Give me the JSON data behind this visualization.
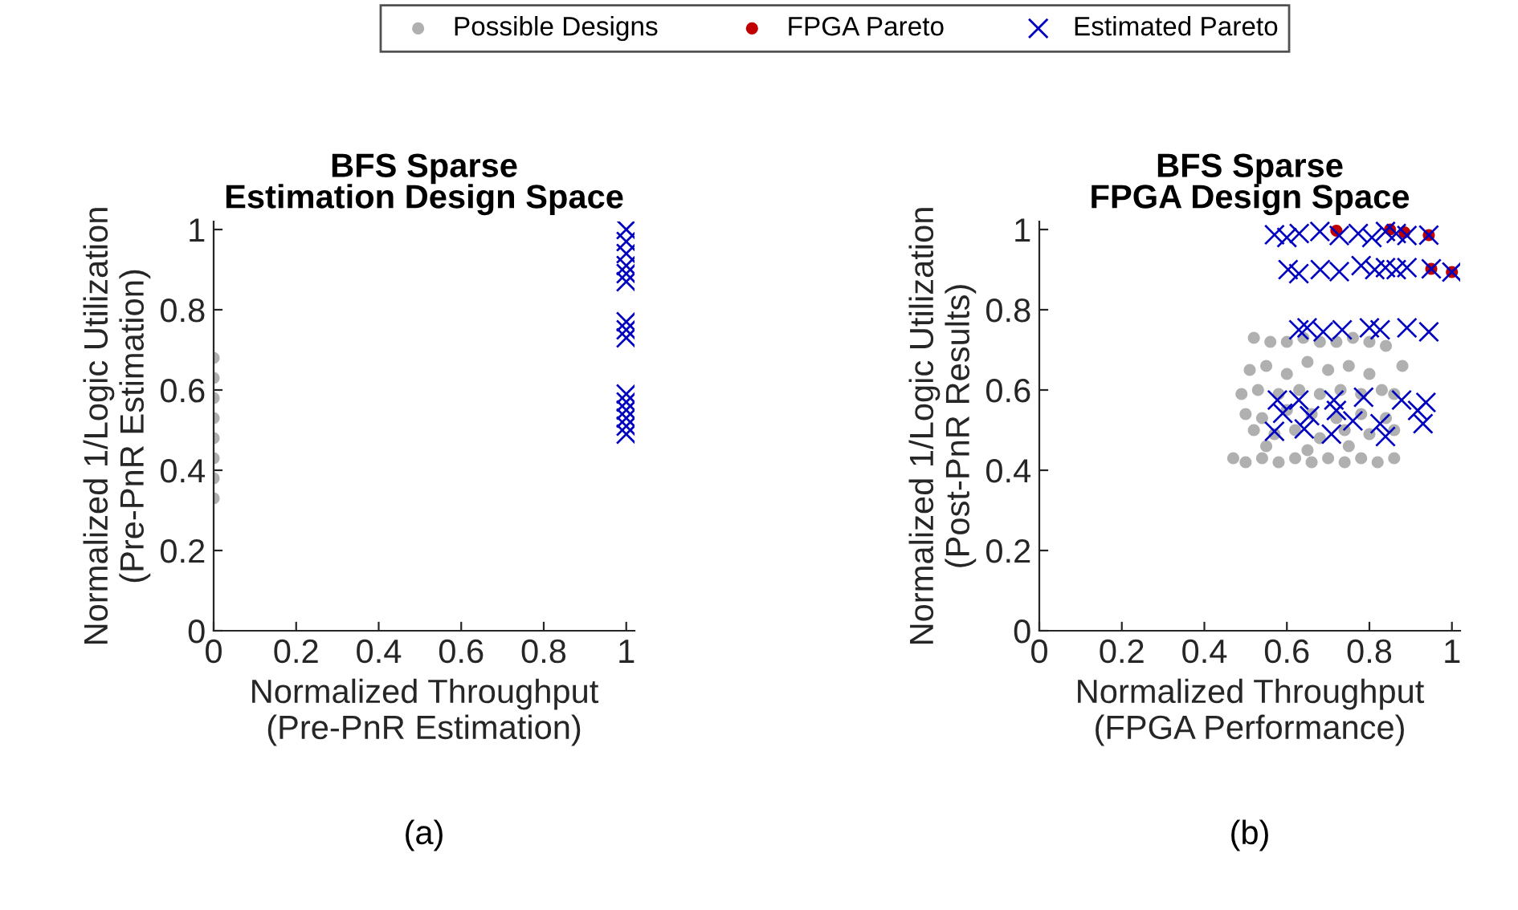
{
  "chart_data": [
    {
      "type": "scatter",
      "title": "BFS Sparse\nEstimation Design Space",
      "xlabel": "Normalized Throughput\n(Pre-PnR Estimation)",
      "ylabel": "Normalized 1/Logic Utilization\n(Pre-PnR Estimation)",
      "xlim": [
        0,
        1.02
      ],
      "ylim": [
        0,
        1.02
      ],
      "xticks": [
        0,
        0.2,
        0.4,
        0.6,
        0.8,
        1
      ],
      "yticks": [
        0,
        0.2,
        0.4,
        0.6,
        0.8,
        1
      ],
      "grid": false,
      "legend": "top",
      "annotations": [
        "(a)"
      ],
      "series": [
        {
          "name": "Possible Designs",
          "color": "#b0b0b0",
          "marker": "circle",
          "x": [
            0,
            0,
            0,
            0,
            0,
            0,
            0,
            0
          ],
          "values": [
            0.33,
            0.38,
            0.43,
            0.48,
            0.53,
            0.58,
            0.63,
            0.68
          ]
        },
        {
          "name": "Estimated Pareto",
          "color": "#0000c0",
          "marker": "cross",
          "x": [
            1,
            1,
            1,
            1,
            1,
            1,
            1,
            1,
            1,
            1,
            1,
            1,
            1,
            1,
            1
          ],
          "values": [
            1.0,
            0.97,
            0.94,
            0.91,
            0.89,
            0.87,
            0.77,
            0.75,
            0.73,
            0.59,
            0.57,
            0.55,
            0.53,
            0.51,
            0.49
          ]
        }
      ]
    },
    {
      "type": "scatter",
      "title": "BFS Sparse\nFPGA Design Space",
      "xlabel": "Normalized Throughput\n(FPGA Performance)",
      "ylabel": "Normalized 1/Logic Utilization\n(Post-PnR Results)",
      "xlim": [
        0,
        1.02
      ],
      "ylim": [
        0,
        1.02
      ],
      "xticks": [
        0,
        0.2,
        0.4,
        0.6,
        0.8,
        1
      ],
      "yticks": [
        0,
        0.2,
        0.4,
        0.6,
        0.8,
        1
      ],
      "grid": false,
      "legend": "top",
      "annotations": [
        "(b)"
      ],
      "series": [
        {
          "name": "Possible Designs",
          "color": "#b0b0b0",
          "marker": "circle",
          "x": [
            0.52,
            0.56,
            0.6,
            0.64,
            0.68,
            0.72,
            0.76,
            0.8,
            0.84,
            0.51,
            0.55,
            0.6,
            0.65,
            0.7,
            0.75,
            0.8,
            0.88,
            0.49,
            0.53,
            0.58,
            0.63,
            0.68,
            0.73,
            0.78,
            0.83,
            0.86,
            0.5,
            0.54,
            0.6,
            0.66,
            0.72,
            0.78,
            0.84,
            0.52,
            0.57,
            0.62,
            0.68,
            0.74,
            0.8,
            0.86,
            0.47,
            0.5,
            0.54,
            0.58,
            0.62,
            0.66,
            0.7,
            0.74,
            0.78,
            0.82,
            0.86,
            0.55,
            0.65,
            0.75
          ],
          "values": [
            0.73,
            0.72,
            0.72,
            0.73,
            0.72,
            0.72,
            0.73,
            0.72,
            0.71,
            0.65,
            0.66,
            0.64,
            0.67,
            0.65,
            0.66,
            0.64,
            0.66,
            0.59,
            0.6,
            0.59,
            0.6,
            0.59,
            0.6,
            0.59,
            0.6,
            0.59,
            0.54,
            0.53,
            0.55,
            0.54,
            0.53,
            0.54,
            0.53,
            0.5,
            0.49,
            0.5,
            0.48,
            0.5,
            0.49,
            0.5,
            0.43,
            0.42,
            0.43,
            0.42,
            0.43,
            0.42,
            0.43,
            0.42,
            0.43,
            0.42,
            0.43,
            0.46,
            0.45,
            0.46
          ]
        },
        {
          "name": "FPGA Pareto",
          "color": "#c00000",
          "marker": "circle",
          "x": [
            0.72,
            0.85,
            0.885,
            0.944,
            0.95,
            1.0
          ],
          "values": [
            0.997,
            1.0,
            0.993,
            0.986,
            0.902,
            0.894
          ]
        },
        {
          "name": "Estimated Pareto",
          "color": "#0000c0",
          "marker": "cross",
          "x": [
            0.57,
            0.6,
            0.63,
            0.68,
            0.727,
            0.773,
            0.806,
            0.839,
            0.865,
            0.891,
            0.944,
            0.603,
            0.629,
            0.681,
            0.727,
            0.78,
            0.813,
            0.839,
            0.865,
            0.891,
            0.95,
            1.0,
            0.629,
            0.649,
            0.688,
            0.734,
            0.8,
            0.826,
            0.891,
            0.944,
            0.577,
            0.629,
            0.714,
            0.786,
            0.878,
            0.937,
            0.59,
            0.655,
            0.72,
            0.76,
            0.826,
            0.93,
            0.57,
            0.642,
            0.708,
            0.839,
            0.917
          ],
          "values": [
            0.987,
            0.98,
            0.99,
            0.995,
            0.985,
            0.99,
            0.98,
            0.995,
            0.99,
            0.985,
            0.986,
            0.9,
            0.89,
            0.9,
            0.895,
            0.91,
            0.9,
            0.905,
            0.9,
            0.905,
            0.902,
            0.894,
            0.75,
            0.755,
            0.745,
            0.75,
            0.755,
            0.75,
            0.755,
            0.745,
            0.575,
            0.575,
            0.575,
            0.582,
            0.575,
            0.569,
            0.542,
            0.536,
            0.549,
            0.523,
            0.516,
            0.516,
            0.497,
            0.503,
            0.49,
            0.484,
            0.549
          ]
        }
      ]
    }
  ]
}
